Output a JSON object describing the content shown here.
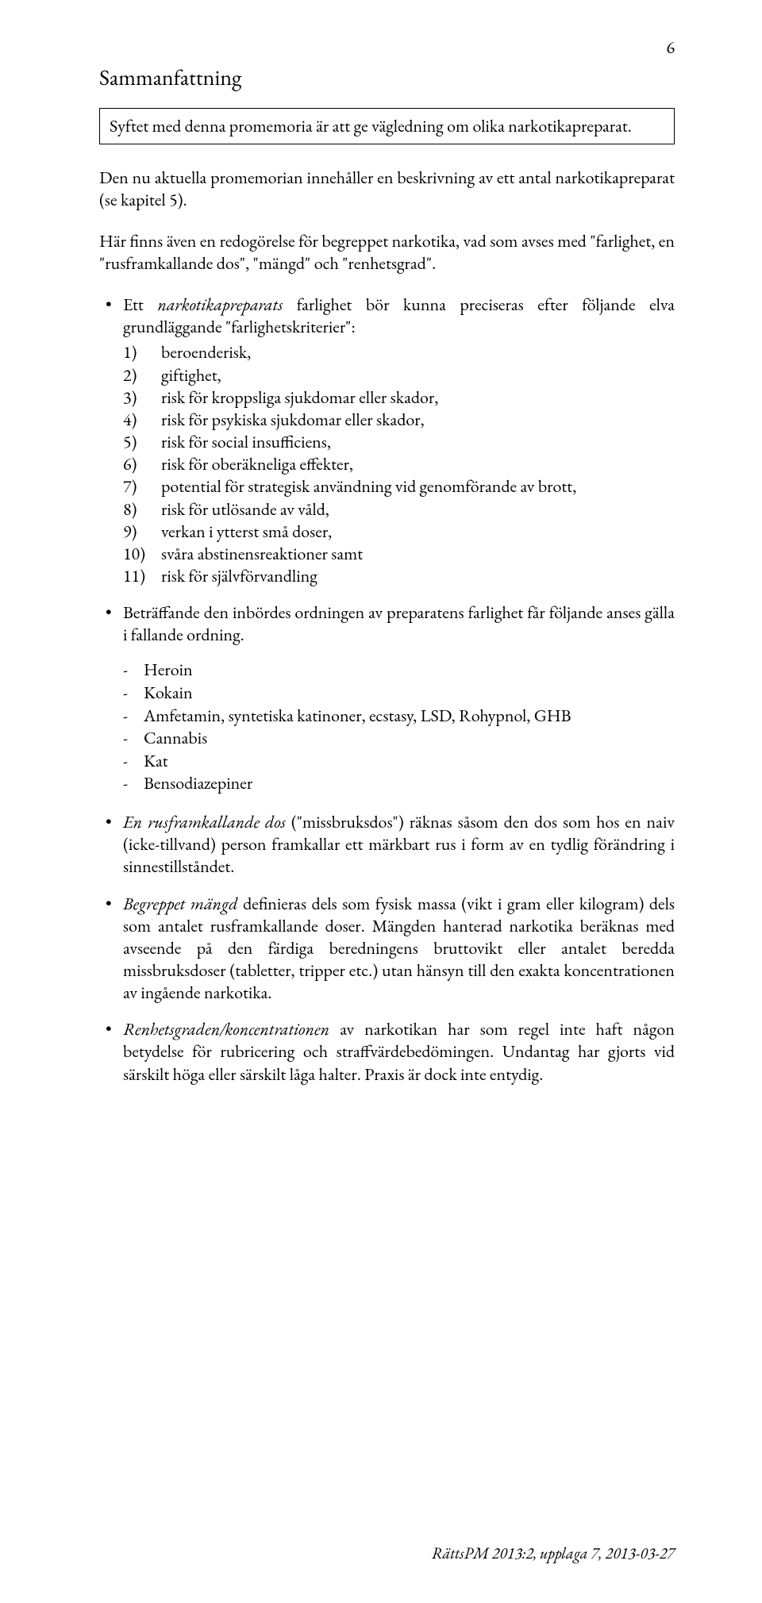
{
  "page_number": "6",
  "section_title": "Sammanfattning",
  "boxed_text": "Syftet med denna promemoria är att ge vägledning om olika narkotikapreparat.",
  "intro_para_1": "Den nu aktuella promemorian innehåller en beskrivning av ett antal narkotikapreparat (se kapitel 5).",
  "intro_para_2": "Här finns även en redogörelse för begreppet narkotika, vad som avses med \"farlighet, en \"rusframkallande dos\", \"mängd\" och \"renhetsgrad\".",
  "bullet_1_lead_prefix": "Ett ",
  "bullet_1_lead_italic": "narkotikapreparats",
  "bullet_1_lead_suffix": " farlighet bör kunna preciseras efter följande elva grundläggande \"farlighetskriterier\":",
  "numbered_items": [
    {
      "n": "1)",
      "t": "beroenderisk,"
    },
    {
      "n": "2)",
      "t": "giftighet,"
    },
    {
      "n": "3)",
      "t": "risk för kroppsliga sjukdomar eller skador,"
    },
    {
      "n": "4)",
      "t": "risk för psykiska sjukdomar eller skador,"
    },
    {
      "n": "5)",
      "t": "risk för social insufficiens,"
    },
    {
      "n": "6)",
      "t": "risk för oberäkneliga effekter,"
    },
    {
      "n": "7)",
      "t": "potential för strategisk användning vid genomförande av brott,"
    },
    {
      "n": "8)",
      "t": "risk för utlösande av våld,"
    },
    {
      "n": "9)",
      "t": "verkan i ytterst små doser,"
    },
    {
      "n": "10)",
      "t": "svåra abstinensreaktioner samt"
    },
    {
      "n": "11)",
      "t": "risk för självförvandling"
    }
  ],
  "bullet_2": "Beträffande den inbördes ordningen av preparatens farlighet får följande anses gälla i fallande ordning.",
  "dash_items": [
    "Heroin",
    "Kokain",
    "Amfetamin, syntetiska katinoner, ecstasy, LSD, Rohypnol, GHB",
    "Cannabis",
    "Kat",
    "Bensodiazepiner"
  ],
  "bullet_3_italic": "En rusframkallande dos",
  "bullet_3_rest": " (\"missbruksdos\") räknas såsom den dos som hos en naiv (icke-tillvand) person framkallar ett märkbart rus i form av en tydlig förändring i sinnestillståndet.",
  "bullet_4_italic": "Begreppet mängd",
  "bullet_4_rest": " definieras dels som fysisk massa (vikt i gram eller kilogram) dels som antalet rusframkallande doser. Mängden hanterad narkotika beräknas med avseende på den färdiga beredningens bruttovikt eller antalet beredda missbruksdoser (tabletter, tripper etc.) utan hänsyn till den exakta koncentrationen av ingående narkotika.",
  "bullet_5_italic": "Renhetsgraden/koncentrationen",
  "bullet_5_rest": " av narkotikan har som regel inte haft någon betydelse för rubricering och straffvärdebedömingen. Undantag har gjorts vid särskilt höga eller särskilt låga halter. Praxis är dock inte entydig.",
  "footer_text": "RättsPM 2013:2, upplaga 7, 2013-03-27",
  "colors": {
    "text": "#000000",
    "background": "#ffffff",
    "border": "#000000"
  },
  "typography": {
    "body_size_pt": 16,
    "title_size_pt": 21,
    "font_family": "Garamond serif"
  }
}
